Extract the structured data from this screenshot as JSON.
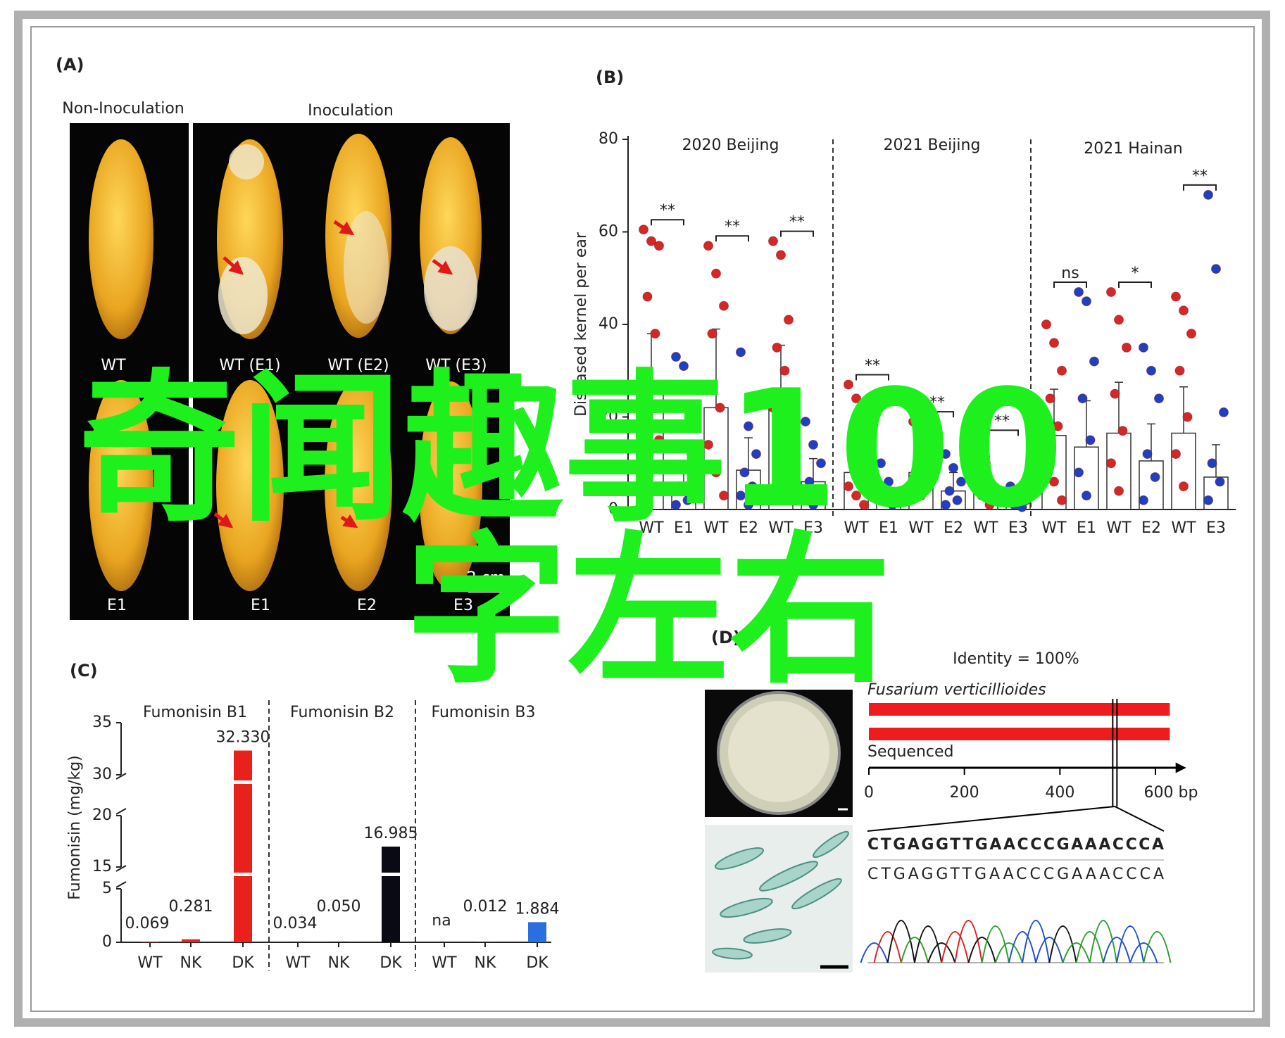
{
  "panel_a": {
    "label": "(A)",
    "group_labels": [
      "Non-Inoculation",
      "Inoculation"
    ],
    "top_labels": [
      "WT",
      "WT (E1)",
      "WT (E2)",
      "WT (E3)"
    ],
    "bottom_labels": [
      "E1",
      "E1",
      "E2",
      "E3"
    ],
    "scale_bar": "2 cm"
  },
  "chart_data": [
    {
      "type": "dotplot",
      "panel_label": "(B)",
      "ylabel": "Diseased kernel per ear",
      "ylim": [
        0,
        80
      ],
      "yticks": [
        0,
        20,
        40,
        60,
        80
      ],
      "wt_color": "#d62728",
      "mutant_color": "#1f3fc4",
      "groups": [
        {
          "title": "2020 Beijing",
          "categories": [
            "WT",
            "E1",
            "WT",
            "E2",
            "WT",
            "E3"
          ],
          "significance": [
            "**",
            "**",
            "**"
          ],
          "means": [
            27,
            4,
            22,
            8.5,
            22.5,
            6
          ],
          "errors": [
            11,
            4,
            17,
            7,
            13,
            5
          ],
          "points": [
            [
              60.5,
              58,
              57,
              46,
              38,
              28,
              22,
              15,
              9,
              4
            ],
            [
              33,
              31,
              12,
              5,
              2,
              1
            ],
            [
              57,
              51,
              44,
              38,
              22,
              14,
              8,
              3
            ],
            [
              34,
              18,
              12,
              8,
              5,
              3,
              1
            ],
            [
              58,
              55,
              41,
              35,
              30,
              22,
              15,
              8,
              3
            ],
            [
              19,
              14,
              10,
              6,
              4,
              2,
              1
            ]
          ]
        },
        {
          "title": "2021 Beijing",
          "categories": [
            "WT",
            "E1",
            "WT",
            "E2",
            "WT",
            "E3"
          ],
          "significance": [
            "**",
            "**",
            "**"
          ],
          "means": [
            8,
            3,
            8,
            4,
            5.5,
            2
          ],
          "errors": [
            8,
            3,
            7,
            4,
            6,
            2
          ],
          "points": [
            [
              27,
              24,
              18,
              12,
              8,
              5,
              3,
              1
            ],
            [
              10,
              6,
              3,
              2,
              1
            ],
            [
              19,
              17,
              14,
              10,
              8,
              5,
              3
            ],
            [
              12,
              9,
              6,
              4,
              2,
              1
            ],
            [
              15,
              10,
              5,
              3,
              1
            ],
            [
              5,
              3,
              2,
              1,
              0.5
            ]
          ]
        },
        {
          "title": "2021 Hainan",
          "categories": [
            "WT",
            "E1",
            "WT",
            "E2",
            "WT",
            "E3"
          ],
          "significance": [
            "ns",
            "*",
            "**"
          ],
          "means": [
            16,
            13.5,
            16.5,
            10.5,
            16.5,
            7
          ],
          "errors": [
            10,
            10,
            11,
            8,
            10,
            7
          ],
          "points": [
            [
              40,
              36,
              30,
              24,
              18,
              12,
              6,
              2
            ],
            [
              47,
              45,
              32,
              24,
              15,
              8,
              3
            ],
            [
              47,
              41,
              35,
              25,
              17,
              10,
              4
            ],
            [
              35,
              30,
              24,
              12,
              7,
              2
            ],
            [
              46,
              43,
              38,
              30,
              20,
              12,
              5
            ],
            [
              68,
              52,
              21,
              10,
              6,
              2
            ]
          ]
        }
      ]
    },
    {
      "type": "bar",
      "panel_label": "(C)",
      "ylabel": "Fumonisin (mg/kg)",
      "y_segments": [
        {
          "ylim": [
            0,
            5
          ],
          "yticks": [
            0,
            5
          ]
        },
        {
          "ylim": [
            15,
            20
          ],
          "yticks": [
            15,
            20
          ]
        },
        {
          "ylim": [
            30,
            35
          ],
          "yticks": [
            30,
            35
          ]
        }
      ],
      "groups": [
        {
          "title": "Fumonisin B1",
          "color": "#e8211d",
          "categories": [
            "WT",
            "NK",
            "DK"
          ],
          "values": [
            0.069,
            0.281,
            32.33
          ],
          "value_labels": [
            "0.069",
            "0.281",
            "32.330"
          ]
        },
        {
          "title": "Fumonisin B2",
          "color": "#0a0a14",
          "categories": [
            "WT",
            "NK",
            "DK"
          ],
          "values": [
            0.034,
            0.05,
            16.985
          ],
          "value_labels": [
            "0.034",
            "0.050",
            "16.985"
          ]
        },
        {
          "title": "Fumonisin B3",
          "color": "#2a6fe0",
          "categories": [
            "WT",
            "NK",
            "DK"
          ],
          "values": [
            null,
            0.012,
            1.884
          ],
          "value_labels": [
            "na",
            "0.012",
            "1.884"
          ]
        }
      ]
    }
  ],
  "panel_d": {
    "label": "(D)",
    "identity": "Identity = 100%",
    "species": "Fusarium verticillioides",
    "sequenced": "Sequenced",
    "xlim": [
      0,
      660
    ],
    "xticks": [
      0,
      200,
      400,
      {
        "value": 600,
        "label": "600 bp"
      }
    ],
    "read_end_bp": [
      630,
      630
    ],
    "zoom_bp": 515,
    "sequences": [
      "CTGAGGTTGAACCCGAAACCCA",
      "CTGAGGTTGAACCCGAAACCCA"
    ]
  },
  "watermark": [
    "奇闻趣事100",
    "字左右"
  ]
}
